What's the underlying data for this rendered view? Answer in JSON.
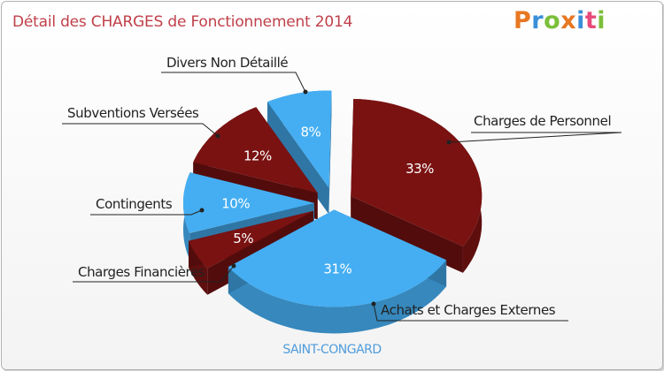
{
  "title": "Détail des CHARGES de Fonctionnement 2014",
  "logo": {
    "text": "Proxiti",
    "colors": [
      "#e87722",
      "#3a8fd8",
      "#7bbf3a",
      "#e87722",
      "#3a8fd8",
      "#e84a7a",
      "#7bbf3a"
    ]
  },
  "commune": "SAINT-CONGARD",
  "colors": {
    "dark_red": "#7a1212",
    "light_blue": "#45aef2",
    "title_color": "#c0404a",
    "commune_color": "#4f9cdc"
  },
  "chart_data": {
    "type": "pie",
    "title": "Détail des CHARGES de Fonctionnement 2014",
    "subtitle": "SAINT-CONGARD",
    "slices": [
      {
        "label": "Charges de Personnel",
        "percent": 33,
        "value_label": "33%",
        "color": "#7a1212"
      },
      {
        "label": "Achats et Charges Externes",
        "percent": 31,
        "value_label": "31%",
        "color": "#45aef2"
      },
      {
        "label": "Charges Financières",
        "percent": 5,
        "value_label": "5%",
        "color": "#7a1212"
      },
      {
        "label": "Contingents",
        "percent": 10,
        "value_label": "10%",
        "color": "#45aef2"
      },
      {
        "label": "Subventions Versées",
        "percent": 12,
        "value_label": "12%",
        "color": "#7a1212"
      },
      {
        "label": "Divers Non Détaillé",
        "percent": 8,
        "value_label": "8%",
        "color": "#45aef2"
      }
    ]
  }
}
